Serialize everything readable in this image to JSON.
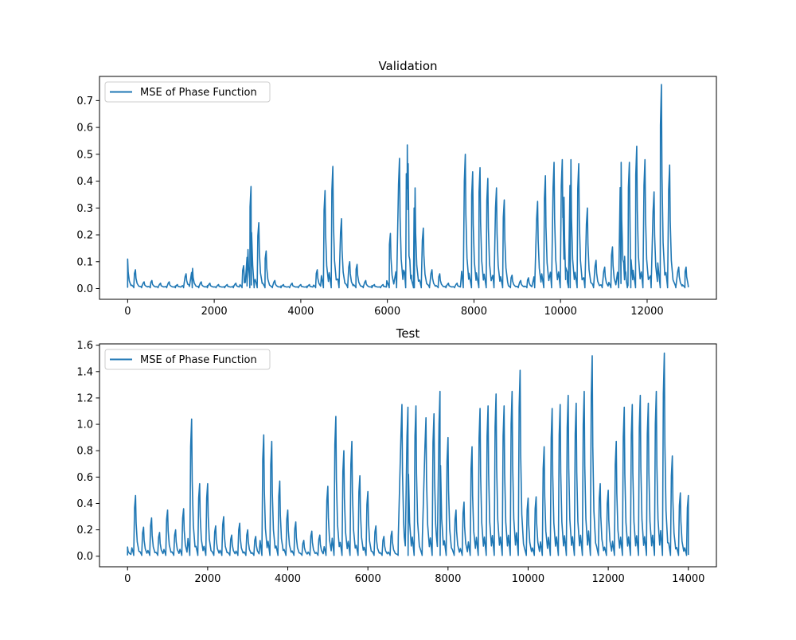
{
  "chart_data": [
    {
      "type": "line",
      "title": "Validation",
      "xlabel": "",
      "ylabel": "",
      "xlim": [
        -650,
        13600
      ],
      "ylim": [
        -0.04,
        0.79
      ],
      "xticks": [
        0,
        2000,
        4000,
        6000,
        8000,
        10000,
        12000
      ],
      "xtick_labels": [
        "0",
        "2000",
        "4000",
        "6000",
        "8000",
        "10000",
        "12000"
      ],
      "yticks": [
        0.0,
        0.1,
        0.2,
        0.3,
        0.4,
        0.5,
        0.6,
        0.7
      ],
      "ytick_labels": [
        "0.0",
        "0.1",
        "0.2",
        "0.3",
        "0.4",
        "0.5",
        "0.6",
        "0.7"
      ],
      "grid": false,
      "legend_position": "upper-left",
      "color": "#1f77b4",
      "series": [
        {
          "name": "MSE of Phase Function",
          "x_range": [
            0,
            12950
          ],
          "baseline": 0.005,
          "peaks": [
            [
              0,
              0.11
            ],
            [
              180,
              0.07
            ],
            [
              380,
              0.025
            ],
            [
              560,
              0.03
            ],
            [
              760,
              0.02
            ],
            [
              960,
              0.025
            ],
            [
              1150,
              0.015
            ],
            [
              1350,
              0.055
            ],
            [
              1500,
              0.075
            ],
            [
              1700,
              0.025
            ],
            [
              1900,
              0.02
            ],
            [
              2100,
              0.015
            ],
            [
              2300,
              0.015
            ],
            [
              2500,
              0.02
            ],
            [
              2680,
              0.085
            ],
            [
              2780,
              0.145
            ],
            [
              2850,
              0.38
            ],
            [
              3030,
              0.245
            ],
            [
              3200,
              0.14
            ],
            [
              3400,
              0.03
            ],
            [
              3600,
              0.015
            ],
            [
              3800,
              0.02
            ],
            [
              4000,
              0.015
            ],
            [
              4200,
              0.015
            ],
            [
              4380,
              0.07
            ],
            [
              4560,
              0.365
            ],
            [
              4740,
              0.455
            ],
            [
              4940,
              0.26
            ],
            [
              5130,
              0.1
            ],
            [
              5300,
              0.09
            ],
            [
              5500,
              0.03
            ],
            [
              5700,
              0.015
            ],
            [
              5900,
              0.015
            ],
            [
              6070,
              0.205
            ],
            [
              6280,
              0.485
            ],
            [
              6460,
              0.535
            ],
            [
              6480,
              0.465
            ],
            [
              6640,
              0.375
            ],
            [
              6830,
              0.225
            ],
            [
              7030,
              0.07
            ],
            [
              7210,
              0.055
            ],
            [
              7410,
              0.02
            ],
            [
              7610,
              0.02
            ],
            [
              7800,
              0.5
            ],
            [
              7970,
              0.435
            ],
            [
              8140,
              0.45
            ],
            [
              8320,
              0.41
            ],
            [
              8520,
              0.375
            ],
            [
              8700,
              0.33
            ],
            [
              8880,
              0.05
            ],
            [
              9080,
              0.03
            ],
            [
              9260,
              0.04
            ],
            [
              9470,
              0.325
            ],
            [
              9650,
              0.42
            ],
            [
              9850,
              0.47
            ],
            [
              10040,
              0.48
            ],
            [
              10080,
              0.34
            ],
            [
              10240,
              0.48
            ],
            [
              10420,
              0.465
            ],
            [
              10620,
              0.3
            ],
            [
              10820,
              0.105
            ],
            [
              11020,
              0.08
            ],
            [
              11200,
              0.155
            ],
            [
              11400,
              0.47
            ],
            [
              11480,
              0.12
            ],
            [
              11590,
              0.47
            ],
            [
              11760,
              0.53
            ],
            [
              11950,
              0.48
            ],
            [
              12160,
              0.36
            ],
            [
              12330,
              0.76
            ],
            [
              12520,
              0.46
            ],
            [
              12730,
              0.08
            ],
            [
              12900,
              0.08
            ]
          ]
        }
      ]
    },
    {
      "type": "line",
      "title": "Test",
      "xlabel": "",
      "ylabel": "",
      "xlim": [
        -700,
        14700
      ],
      "ylim": [
        -0.08,
        1.61
      ],
      "xticks": [
        0,
        2000,
        4000,
        6000,
        8000,
        10000,
        12000,
        14000
      ],
      "xtick_labels": [
        "0",
        "2000",
        "4000",
        "6000",
        "8000",
        "10000",
        "12000",
        "14000"
      ],
      "yticks": [
        0.0,
        0.2,
        0.4,
        0.6,
        0.8,
        1.0,
        1.2,
        1.4,
        1.6
      ],
      "ytick_labels": [
        "0.0",
        "0.2",
        "0.4",
        "0.6",
        "0.8",
        "1.0",
        "1.2",
        "1.4",
        "1.6"
      ],
      "grid": false,
      "legend_position": "upper-left",
      "color": "#1f77b4",
      "series": [
        {
          "name": "MSE of Phase Function",
          "x_range": [
            0,
            14000
          ],
          "baseline": 0.01,
          "peaks": [
            [
              0,
              0.07
            ],
            [
              200,
              0.46
            ],
            [
              400,
              0.22
            ],
            [
              600,
              0.29
            ],
            [
              800,
              0.18
            ],
            [
              1000,
              0.35
            ],
            [
              1200,
              0.2
            ],
            [
              1400,
              0.36
            ],
            [
              1600,
              1.04
            ],
            [
              1800,
              0.55
            ],
            [
              2000,
              0.55
            ],
            [
              2200,
              0.23
            ],
            [
              2400,
              0.3
            ],
            [
              2600,
              0.16
            ],
            [
              2800,
              0.25
            ],
            [
              3000,
              0.2
            ],
            [
              3200,
              0.15
            ],
            [
              3400,
              0.92
            ],
            [
              3600,
              0.87
            ],
            [
              3800,
              0.57
            ],
            [
              4000,
              0.35
            ],
            [
              4200,
              0.26
            ],
            [
              4400,
              0.12
            ],
            [
              4600,
              0.19
            ],
            [
              4800,
              0.16
            ],
            [
              5000,
              0.53
            ],
            [
              5200,
              1.06
            ],
            [
              5400,
              0.8
            ],
            [
              5600,
              0.87
            ],
            [
              5800,
              0.61
            ],
            [
              6000,
              0.49
            ],
            [
              6200,
              0.23
            ],
            [
              6400,
              0.15
            ],
            [
              6600,
              0.19
            ],
            [
              6850,
              1.15
            ],
            [
              7000,
              1.13
            ],
            [
              7200,
              1.14
            ],
            [
              7450,
              1.05
            ],
            [
              7650,
              1.08
            ],
            [
              7800,
              1.25
            ],
            [
              8000,
              0.9
            ],
            [
              8200,
              0.35
            ],
            [
              8400,
              0.41
            ],
            [
              8600,
              0.83
            ],
            [
              8800,
              1.12
            ],
            [
              9000,
              1.14
            ],
            [
              9200,
              1.23
            ],
            [
              9400,
              1.14
            ],
            [
              9600,
              1.25
            ],
            [
              9800,
              1.41
            ],
            [
              10000,
              0.44
            ],
            [
              10200,
              0.45
            ],
            [
              10400,
              0.83
            ],
            [
              10600,
              1.12
            ],
            [
              10800,
              1.15
            ],
            [
              11000,
              1.22
            ],
            [
              11200,
              1.16
            ],
            [
              11400,
              1.25
            ],
            [
              11600,
              1.52
            ],
            [
              11800,
              0.55
            ],
            [
              12000,
              0.5
            ],
            [
              12200,
              0.87
            ],
            [
              12400,
              1.13
            ],
            [
              12600,
              1.15
            ],
            [
              12800,
              1.22
            ],
            [
              13000,
              1.16
            ],
            [
              13200,
              1.25
            ],
            [
              13400,
              1.54
            ],
            [
              13600,
              0.76
            ],
            [
              13800,
              0.48
            ],
            [
              14000,
              0.46
            ]
          ]
        }
      ]
    }
  ]
}
